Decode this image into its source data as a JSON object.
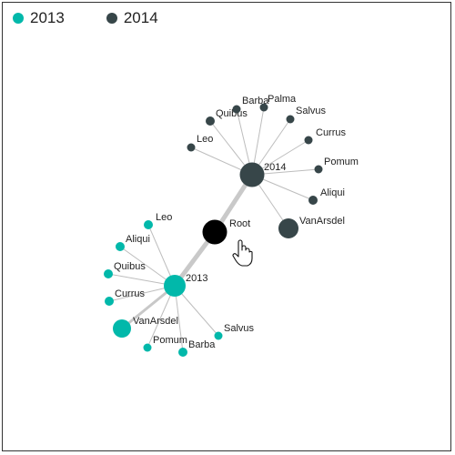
{
  "legend": [
    {
      "label": "2013",
      "color": "#01b8aa"
    },
    {
      "label": "2014",
      "color": "#374649"
    }
  ],
  "graph": {
    "root": {
      "label": "Root",
      "color": "#000000"
    },
    "groups": [
      {
        "label": "2013",
        "color": "#01b8aa",
        "children": [
          "Leo",
          "Aliqui",
          "Quibus",
          "Currus",
          "VanArsdel",
          "Pomum",
          "Barba",
          "Salvus"
        ]
      },
      {
        "label": "2014",
        "color": "#374649",
        "children": [
          "Leo",
          "Quibus",
          "Barba",
          "Palma",
          "Salvus",
          "Currus",
          "Pomum",
          "Aliqui",
          "VanArsdel"
        ]
      }
    ]
  },
  "cursor": {
    "icon": "hand-pointer-icon"
  }
}
